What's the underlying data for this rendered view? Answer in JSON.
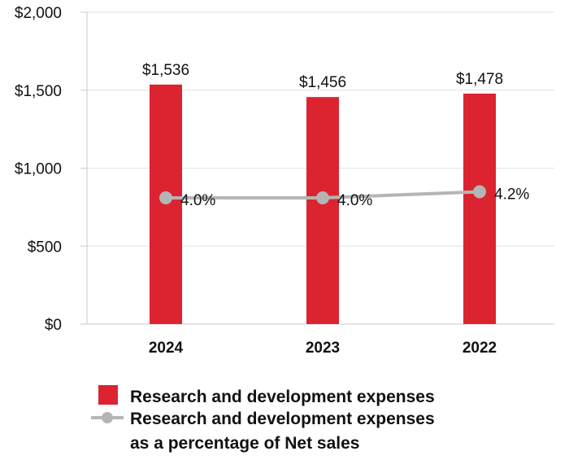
{
  "colors": {
    "bar": "#DC2430",
    "line": "#B5B5B5",
    "grid": "#E3E3E3",
    "axis": "#C8C8C8"
  },
  "chart_data": {
    "type": "bar",
    "categories": [
      "2024",
      "2023",
      "2022"
    ],
    "series": [
      {
        "name": "Research and development expenses",
        "type": "bar",
        "values": [
          1536,
          1456,
          1478
        ],
        "labels": [
          "$1,536",
          "$1,456",
          "$1,478"
        ]
      },
      {
        "name": "Research and development expenses as a percentage of Net sales",
        "type": "line",
        "values": [
          4.0,
          4.0,
          4.2
        ],
        "labels": [
          "4.0%",
          "4.0%",
          "4.2%"
        ]
      }
    ],
    "ylim": [
      0,
      2000
    ],
    "yticks": [
      0,
      500,
      1000,
      1500,
      2000
    ],
    "ytick_labels": [
      "$0",
      "$500",
      "$1,000",
      "$1,500",
      "$2,000"
    ],
    "grid": true,
    "legend": {
      "placement": "bottom",
      "bar_label": "Research and development expenses",
      "line_label_lines": [
        "Research and development expenses",
        "as a percentage of Net sales"
      ]
    }
  }
}
